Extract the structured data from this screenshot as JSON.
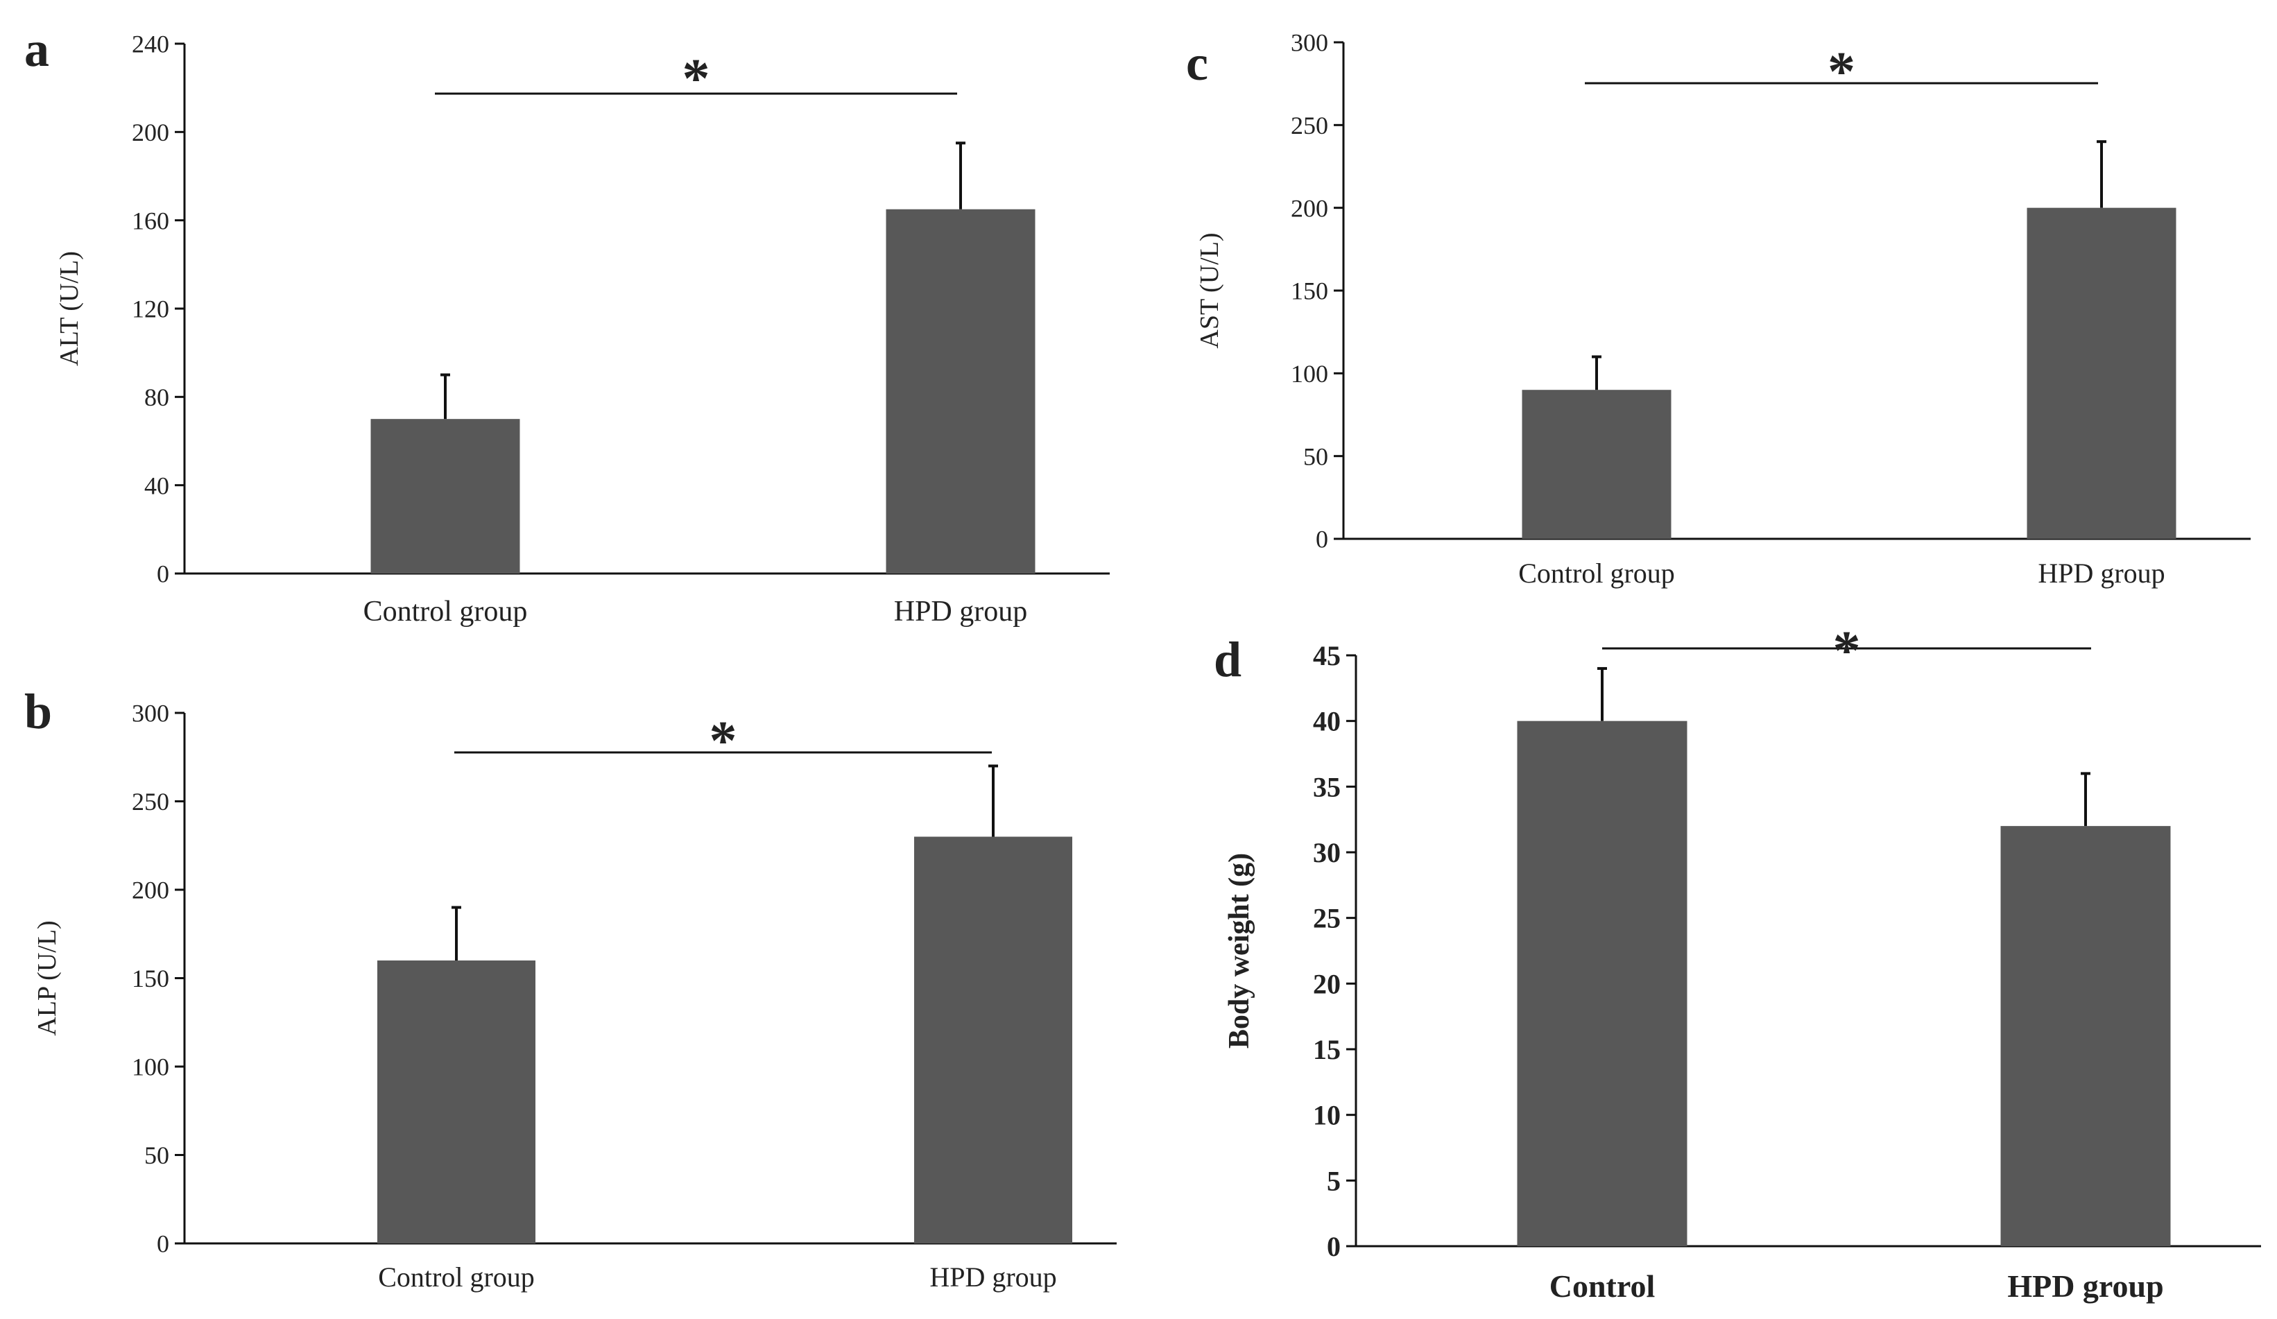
{
  "colors": {
    "bar": "#585858",
    "axis": "#111111",
    "text": "#222222"
  },
  "chart_data": [
    {
      "panel": "a",
      "type": "bar",
      "categories": [
        "Control group",
        "HPD group"
      ],
      "values": [
        70,
        165
      ],
      "errors": [
        20,
        30
      ],
      "ylabel": "ALT  (U/L)",
      "ylim": [
        0,
        240
      ],
      "yticks": [
        0,
        40,
        80,
        120,
        160,
        200,
        240
      ],
      "significance": "*",
      "bold": false
    },
    {
      "panel": "b",
      "type": "bar",
      "categories": [
        "Control group",
        "HPD group"
      ],
      "values": [
        160,
        230
      ],
      "errors": [
        30,
        40
      ],
      "ylabel": "ALP (U/L)",
      "ylim": [
        0,
        300
      ],
      "yticks": [
        0,
        50,
        100,
        150,
        200,
        250,
        300
      ],
      "significance": "*",
      "bold": false
    },
    {
      "panel": "c",
      "type": "bar",
      "categories": [
        "Control group",
        "HPD group"
      ],
      "values": [
        90,
        200
      ],
      "errors": [
        20,
        40
      ],
      "ylabel": "AST (U/L)",
      "ylim": [
        0,
        300
      ],
      "yticks": [
        0,
        50,
        100,
        150,
        200,
        250,
        300
      ],
      "significance": "*",
      "bold": false
    },
    {
      "panel": "d",
      "type": "bar",
      "categories": [
        "Control",
        "HPD group"
      ],
      "values": [
        40,
        32
      ],
      "errors": [
        4,
        4
      ],
      "ylabel": "Body weight (g)",
      "ylim": [
        0,
        45
      ],
      "yticks": [
        0,
        5,
        10,
        15,
        20,
        25,
        30,
        35,
        40,
        45
      ],
      "significance": "*",
      "bold": true
    }
  ]
}
